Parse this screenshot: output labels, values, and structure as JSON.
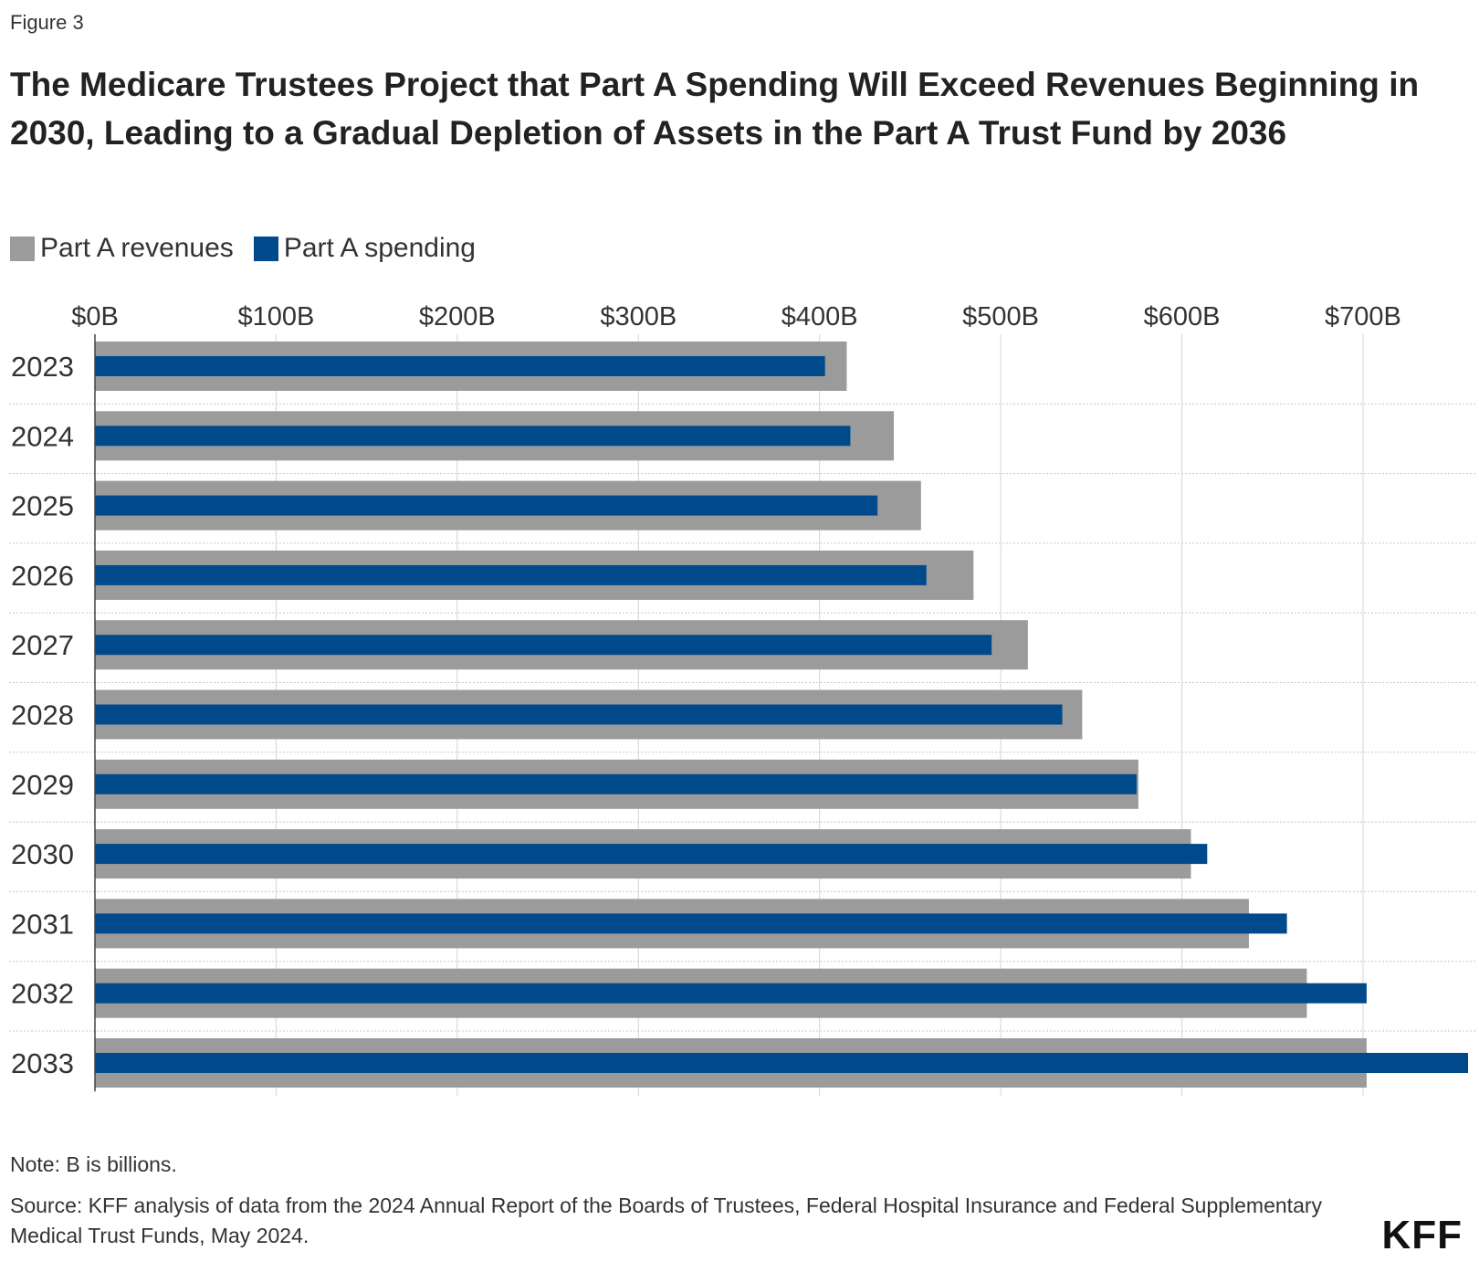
{
  "figure_label": "Figure 3",
  "title": "The Medicare Trustees Project that Part A Spending Will Exceed Revenues Beginning in 2030, Leading to a Gradual Depletion of Assets in the Part A Trust Fund by 2036",
  "note": "Note: B is billions.",
  "source": "Source: KFF analysis of data from the 2024 Annual Report of the Boards of Trustees, Federal Hospital Insurance and Federal Supplementary Medical Trust Funds, May 2024.",
  "logo_text": "KFF",
  "colors": {
    "revenues": "#9b9b9b",
    "spending": "#004a8c",
    "grid": "#d4d4d4",
    "axis": "#444444"
  },
  "chart_data": {
    "type": "bar",
    "orientation": "horizontal",
    "categories": [
      "2023",
      "2024",
      "2025",
      "2026",
      "2027",
      "2028",
      "2029",
      "2030",
      "2031",
      "2032",
      "2033"
    ],
    "series": [
      {
        "name": "Part A revenues",
        "values": [
          415,
          441,
          456,
          485,
          515,
          545,
          576,
          605,
          637,
          669,
          702
        ]
      },
      {
        "name": "Part A spending",
        "values": [
          403,
          417,
          432,
          459,
          495,
          534,
          575,
          614,
          658,
          702,
          758
        ]
      }
    ],
    "xticks": [
      "$0B",
      "$100B",
      "$200B",
      "$300B",
      "$400B",
      "$500B",
      "$600B",
      "$700B"
    ],
    "xlim": [
      0,
      760
    ],
    "grid": true,
    "legend_position": "top-left"
  }
}
